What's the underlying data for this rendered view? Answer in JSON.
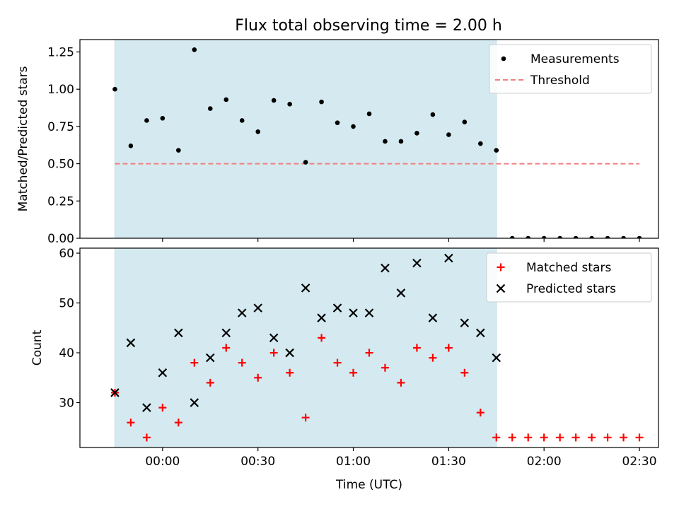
{
  "title": "Flux total observing time = 2.00 h",
  "chart_data": [
    {
      "type": "scatter",
      "id": "top",
      "ylabel": "Matched/Predicted stars",
      "xlabel": "",
      "ylim": [
        0,
        1.333
      ],
      "yticks": [
        0.0,
        0.25,
        0.5,
        0.75,
        1.0,
        1.25
      ],
      "ytick_labels": [
        "0.00",
        "0.25",
        "0.50",
        "0.75",
        "1.00",
        "1.25"
      ],
      "legend": {
        "placement": "top-right",
        "entries": [
          "Measurements",
          "Threshold"
        ]
      },
      "shaded_region": {
        "x_start_min": -15,
        "x_end_min": 105,
        "color": "#d4eaf0"
      },
      "threshold": {
        "name": "Threshold",
        "y": 0.5,
        "x_start_min": -15,
        "x_end_min": 150,
        "color": "#f08080",
        "style": "dashed"
      },
      "series": [
        {
          "name": "Measurements",
          "marker": "dot",
          "color": "#000000",
          "x_min": [
            -15,
            -10,
            -5,
            0,
            5,
            10,
            15,
            20,
            25,
            30,
            35,
            40,
            45,
            50,
            55,
            60,
            65,
            70,
            75,
            80,
            85,
            90,
            95,
            100,
            105,
            110,
            115,
            120,
            125,
            130,
            135,
            140,
            145,
            150
          ],
          "y": [
            1.0,
            0.62,
            0.79,
            0.805,
            0.59,
            1.265,
            0.87,
            0.93,
            0.79,
            0.715,
            0.925,
            0.9,
            0.51,
            0.915,
            0.775,
            0.75,
            0.835,
            0.65,
            0.65,
            0.705,
            0.83,
            0.695,
            0.78,
            0.635,
            0.59,
            0.0,
            0.0,
            0.0,
            0.0,
            0.0,
            0.0,
            0.0,
            0.0,
            0.0
          ]
        }
      ]
    },
    {
      "type": "scatter",
      "id": "bottom",
      "ylabel": "Count",
      "xlabel": "Time (UTC)",
      "ylim": [
        21,
        61
      ],
      "yticks": [
        30,
        40,
        50,
        60
      ],
      "ytick_labels": [
        "30",
        "40",
        "50",
        "60"
      ],
      "xlim_min": [
        -26,
        156
      ],
      "xticks_min": [
        0,
        30,
        60,
        90,
        120,
        150
      ],
      "xtick_labels": [
        "00:00",
        "00:30",
        "01:00",
        "01:30",
        "02:00",
        "02:30"
      ],
      "legend": {
        "placement": "top-right",
        "entries": [
          "Matched stars",
          "Predicted stars"
        ]
      },
      "shaded_region": {
        "x_start_min": -15,
        "x_end_min": 105,
        "color": "#d4eaf0"
      },
      "series": [
        {
          "name": "Matched stars",
          "marker": "plus",
          "color": "#ff0000",
          "x_min": [
            -15,
            -10,
            -5,
            0,
            5,
            10,
            15,
            20,
            25,
            30,
            35,
            40,
            45,
            50,
            55,
            60,
            65,
            70,
            75,
            80,
            85,
            90,
            95,
            100,
            105,
            110,
            115,
            120,
            125,
            130,
            135,
            140,
            145,
            150
          ],
          "y": [
            32,
            26,
            23,
            29,
            26,
            38,
            34,
            41,
            38,
            35,
            40,
            36,
            27,
            43,
            38,
            36,
            40,
            37,
            34,
            41,
            39,
            41,
            36,
            28,
            23,
            23,
            23,
            23,
            23,
            23,
            23,
            23,
            23,
            23
          ]
        },
        {
          "name": "Predicted stars",
          "marker": "x",
          "color": "#000000",
          "x_min": [
            -15,
            -10,
            -5,
            0,
            5,
            10,
            15,
            20,
            25,
            30,
            35,
            40,
            45,
            50,
            55,
            60,
            65,
            70,
            75,
            80,
            85,
            90,
            95,
            100,
            105
          ],
          "y": [
            32,
            42,
            29,
            36,
            44,
            30,
            39,
            44,
            48,
            49,
            43,
            40,
            53,
            47,
            49,
            48,
            48,
            57,
            52,
            58,
            47,
            59,
            46,
            44,
            39
          ]
        }
      ]
    }
  ]
}
